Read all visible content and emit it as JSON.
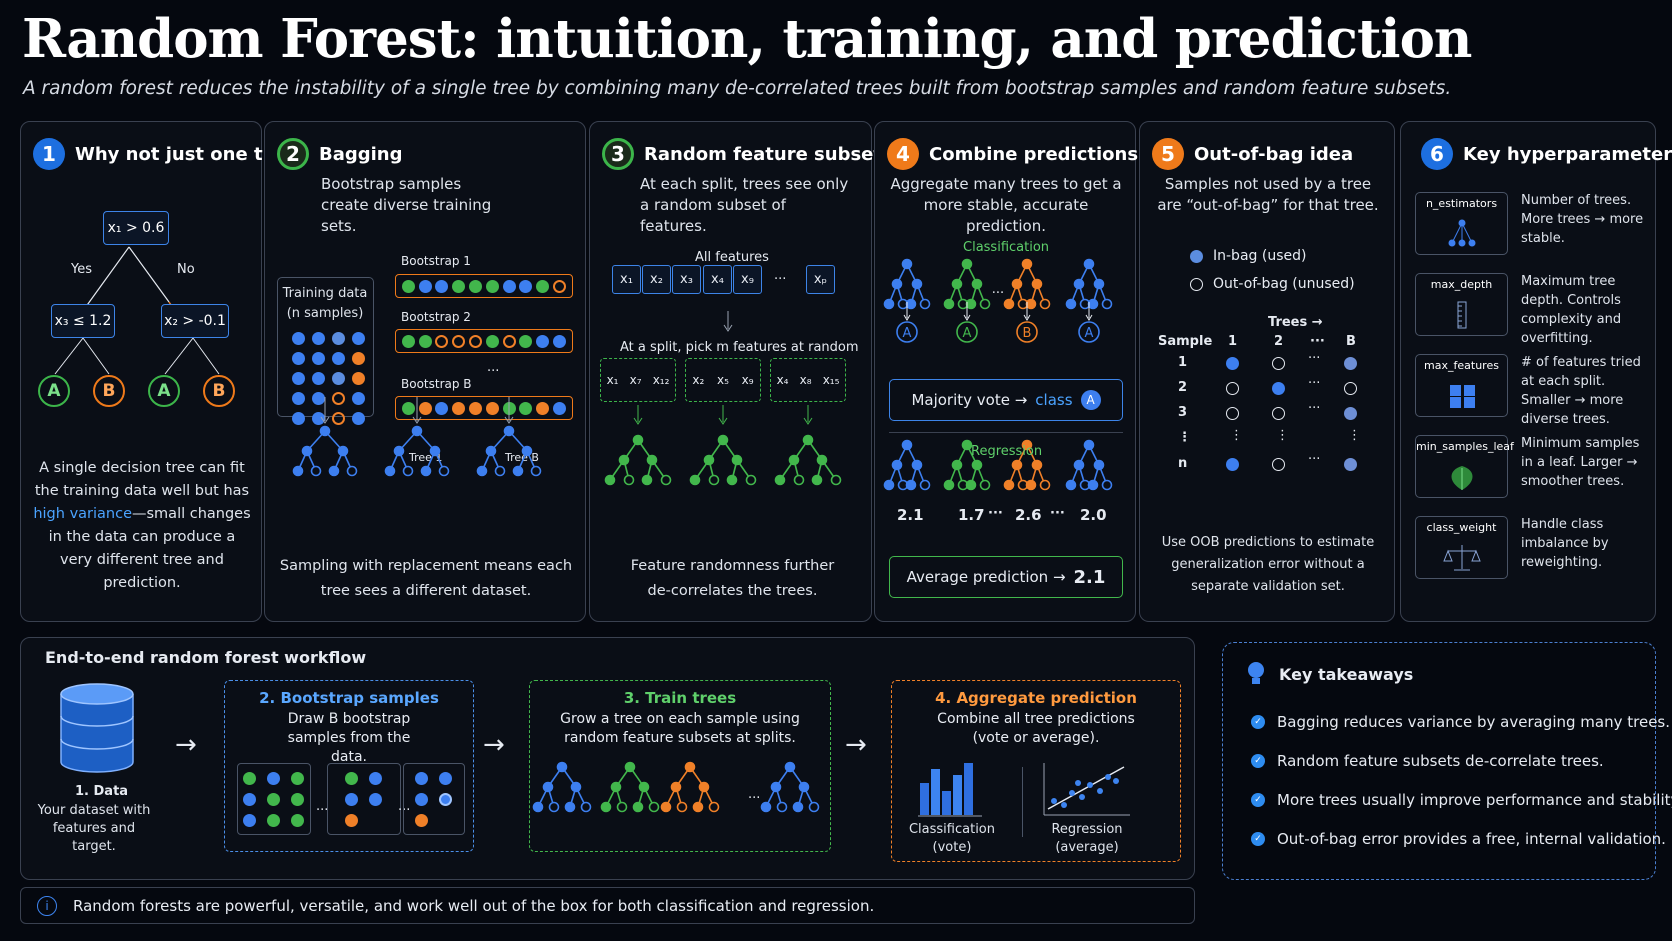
{
  "title": "Random Forest: intuition, training, and prediction",
  "subtitle": "A random forest reduces the instability of a single tree by combining many de-correlated trees built from bootstrap samples and random feature subsets.",
  "panels": {
    "p1": {
      "num": "1",
      "heading": "Why not just one tree?",
      "root": "x₁ > 0.6",
      "yes": "Yes",
      "no": "No",
      "left_node": "x₃ ≤ 1.2",
      "right_node": "x₂ > -0.1",
      "leaves": [
        "A",
        "B",
        "A",
        "B"
      ],
      "text_a": "A single decision tree can fit the training data well but has ",
      "text_hl": "high variance",
      "text_b": "—small changes in the data can produce a very different tree and prediction."
    },
    "p2": {
      "num": "2",
      "heading": "Bagging",
      "desc": "Bootstrap samples create diverse training sets.",
      "training_label": "Training data (n samples)",
      "boot1": "Bootstrap 1",
      "boot2": "Bootstrap 2",
      "bootB": "Bootstrap B",
      "dots": "...",
      "tree1": "Tree 1",
      "treeB": "Tree B",
      "footer": "Sampling with replacement means each tree sees a different dataset."
    },
    "p3": {
      "num": "3",
      "heading": "Random feature subsets",
      "desc": "At each split, trees see only a random subset of features.",
      "all_features": "All features",
      "features": [
        "x₁",
        "x₂",
        "x₃",
        "x₄",
        "x₉",
        "···",
        "xₚ"
      ],
      "pick": "At a split, pick m features at random",
      "groups": [
        [
          "x₁",
          "x₇",
          "x₁₂"
        ],
        [
          "x₂",
          "x₅",
          "x₉"
        ],
        [
          "x₄",
          "x₈",
          "x₁₅"
        ]
      ],
      "footer": "Feature randomness further de-correlates the trees."
    },
    "p4": {
      "num": "4",
      "heading": "Combine predictions",
      "desc": "Aggregate many trees to get a more stable, accurate prediction.",
      "classification": "Classification",
      "class_leaves": [
        "A",
        "A",
        "B",
        "···",
        "A"
      ],
      "majority": "Majority vote →",
      "class_word": "class",
      "class_val": "A",
      "regression": "Regression",
      "reg_values": [
        "2.1",
        "1.7",
        "···",
        "2.6",
        "···",
        "2.0"
      ],
      "average": "Average prediction →",
      "average_val": "2.1"
    },
    "p5": {
      "num": "5",
      "heading": "Out-of-bag idea",
      "desc": "Samples not used by a tree are “out-of-bag” for that tree.",
      "legend_in": "In-bag (used)",
      "legend_out": "Out-of-bag (unused)",
      "trees_label": "Trees →",
      "sample_label": "Sample",
      "cols": [
        "1",
        "2",
        "···",
        "B"
      ],
      "rows": [
        "1",
        "2",
        "3",
        "⋮",
        "n"
      ],
      "footer": "Use OOB predictions to estimate generalization error without a separate validation set."
    },
    "p6": {
      "num": "6",
      "heading": "Key hyperparameters",
      "items": [
        {
          "name": "n_estimators",
          "text": "Number of trees. More trees → more stable."
        },
        {
          "name": "max_depth",
          "text": "Maximum tree depth. Controls complexity and overfitting."
        },
        {
          "name": "max_features",
          "text": "# of features tried at each split. Smaller → more diverse trees."
        },
        {
          "name": "min_samples_leaf",
          "text": "Minimum samples in a leaf. Larger → smoother trees."
        },
        {
          "name": "class_weight",
          "text": "Handle class imbalance by reweighting."
        }
      ]
    }
  },
  "workflow": {
    "heading": "End-to-end random forest workflow",
    "data_title": "1. Data",
    "data_desc": "Your dataset with features and target.",
    "step2_title": "2. Bootstrap samples",
    "step2_desc": "Draw B bootstrap samples from the data.",
    "step3_title": "3. Train trees",
    "step3_desc": "Grow a tree on each sample using random feature subsets at splits.",
    "step4_title": "4. Aggregate prediction",
    "step4_desc": "Combine all tree predictions (vote or average).",
    "class_label": "Classification (vote)",
    "reg_label": "Regression (average)",
    "ellipsis": "···"
  },
  "takeaways": {
    "heading": "Key takeaways",
    "items": [
      "Bagging reduces variance by averaging many trees.",
      "Random feature subsets de-correlate trees.",
      "More trees usually improve performance and stability.",
      "Out-of-bag error provides a free, internal validation."
    ]
  },
  "footer_note": "Random forests are powerful, versatile, and work well out of the box for both classification and regression.",
  "colors": {
    "blue": "#3d7ff0",
    "green": "#42b74c",
    "orange": "#f08028",
    "background": "#05080f"
  }
}
